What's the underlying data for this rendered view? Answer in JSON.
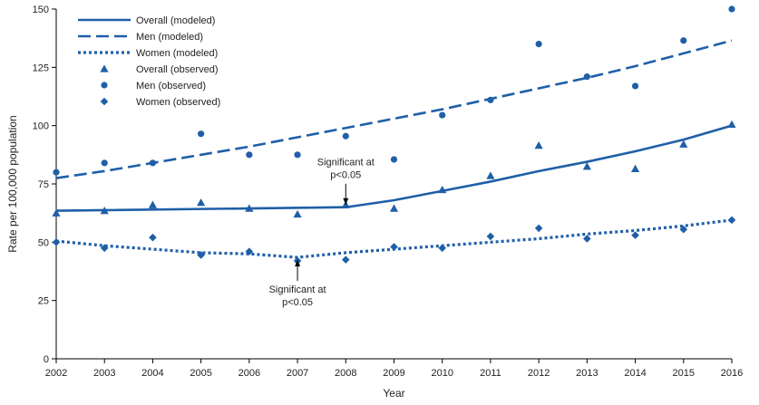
{
  "chart_data": {
    "type": "line",
    "title": "",
    "xlabel": "Year",
    "ylabel": "Rate per 100,000 population",
    "xlim": [
      2002,
      2016
    ],
    "ylim": [
      0,
      150
    ],
    "x": [
      2002,
      2003,
      2004,
      2005,
      2006,
      2007,
      2008,
      2009,
      2010,
      2011,
      2012,
      2013,
      2014,
      2015,
      2016
    ],
    "xticks": [
      2002,
      2003,
      2004,
      2005,
      2006,
      2007,
      2008,
      2009,
      2010,
      2011,
      2012,
      2013,
      2014,
      2015,
      2016
    ],
    "yticks": [
      0,
      25,
      50,
      75,
      100,
      125,
      150
    ],
    "color": "#1f5fa8",
    "series": [
      {
        "name": "Overall (modeled)",
        "style": "solid",
        "kind": "line",
        "x": [
          2002,
          2008,
          2009,
          2010,
          2011,
          2012,
          2013,
          2014,
          2015,
          2016
        ],
        "values": [
          63.5,
          65.0,
          68.0,
          72.0,
          76.0,
          80.5,
          84.5,
          89.0,
          94.0,
          100.0
        ]
      },
      {
        "name": "Men (modeled)",
        "style": "dashed",
        "kind": "line",
        "x": [
          2002,
          2003,
          2004,
          2005,
          2006,
          2007,
          2008,
          2009,
          2010,
          2011,
          2012,
          2013,
          2014,
          2015,
          2016
        ],
        "values": [
          77.5,
          80.5,
          84.0,
          87.5,
          91.0,
          95.0,
          99.0,
          103.0,
          107.0,
          111.5,
          116.0,
          120.5,
          125.5,
          131.0,
          136.5
        ]
      },
      {
        "name": "Women (modeled)",
        "style": "dotted",
        "kind": "line",
        "x": [
          2002,
          2003,
          2004,
          2005,
          2006,
          2007,
          2008,
          2009,
          2010,
          2011,
          2012,
          2013,
          2014,
          2015,
          2016
        ],
        "values": [
          50.5,
          48.5,
          47.0,
          45.5,
          45.0,
          43.5,
          45.5,
          47.0,
          48.5,
          50.0,
          51.5,
          53.5,
          55.0,
          57.0,
          59.5
        ]
      },
      {
        "name": "Overall (observed)",
        "kind": "triangle",
        "x": [
          2002,
          2003,
          2004,
          2005,
          2006,
          2007,
          2008,
          2009,
          2010,
          2011,
          2012,
          2013,
          2014,
          2015,
          2016
        ],
        "values": [
          62.5,
          63.5,
          66.0,
          67.0,
          64.5,
          62.0,
          66.0,
          64.5,
          72.5,
          78.5,
          91.5,
          82.5,
          81.5,
          92.0,
          100.5
        ]
      },
      {
        "name": "Men (observed)",
        "kind": "circle",
        "x": [
          2002,
          2003,
          2004,
          2005,
          2006,
          2007,
          2008,
          2009,
          2010,
          2011,
          2012,
          2013,
          2014,
          2015,
          2016
        ],
        "values": [
          80.0,
          84.0,
          84.0,
          96.5,
          87.5,
          87.5,
          95.5,
          85.5,
          104.5,
          111.0,
          135.0,
          121.0,
          117.0,
          136.5,
          150.0
        ]
      },
      {
        "name": "Women (observed)",
        "kind": "diamond",
        "x": [
          2002,
          2003,
          2004,
          2005,
          2006,
          2007,
          2008,
          2009,
          2010,
          2011,
          2012,
          2013,
          2014,
          2015,
          2016
        ],
        "values": [
          50.0,
          47.5,
          52.0,
          44.5,
          46.0,
          42.0,
          42.5,
          48.0,
          47.5,
          52.5,
          56.0,
          51.5,
          53.0,
          55.5,
          59.5
        ]
      }
    ],
    "legend_position": "top-left",
    "annotations": [
      {
        "line1": "Significant at",
        "line2": "p<0.05",
        "x": 2008,
        "y": 65.0,
        "direction": "above"
      },
      {
        "line1": "Significant at",
        "line2": "p<0.05",
        "x": 2007,
        "y": 43.5,
        "direction": "below"
      }
    ]
  }
}
